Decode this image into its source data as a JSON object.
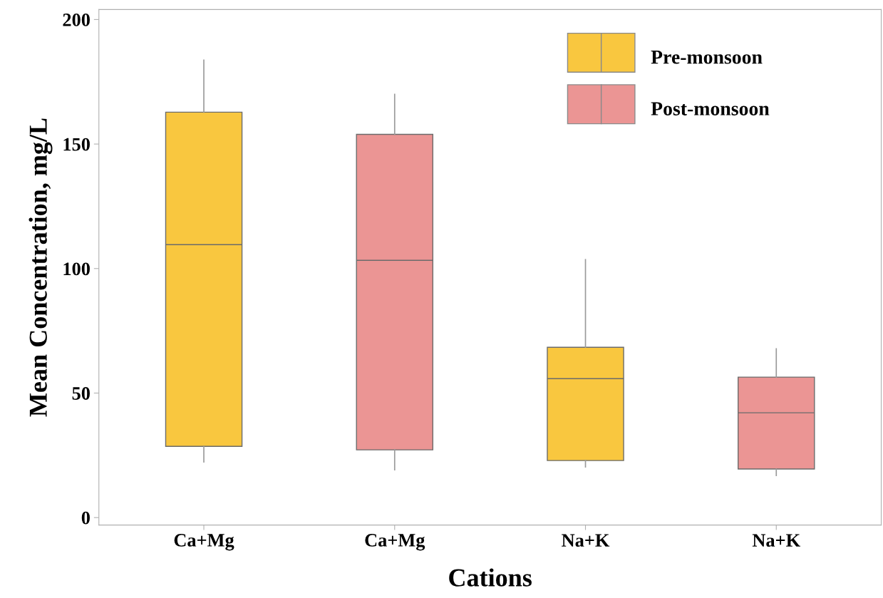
{
  "chart_data": {
    "type": "box",
    "xlabel": "Cations",
    "ylabel": "Mean Concentration, mg/L",
    "categories": [
      "Ca+Mg",
      "Ca+Mg",
      "Na+K",
      "Na+K"
    ],
    "series": [
      {
        "name": "Pre-monsoon",
        "color": "#f9c73f",
        "boxes": [
          {
            "low": 22.3,
            "q1": 28.6,
            "median": 109.6,
            "q3": 162.8,
            "high": 183.7
          },
          null,
          {
            "low": 20.3,
            "q1": 22.9,
            "median": 55.8,
            "q3": 68.4,
            "high": 103.6
          },
          null
        ]
      },
      {
        "name": "Post-monsoon",
        "color": "#eb9594",
        "boxes": [
          null,
          {
            "low": 19.2,
            "q1": 27.2,
            "median": 103.3,
            "q3": 153.9,
            "high": 170
          },
          null,
          {
            "low": 16.9,
            "q1": 19.5,
            "median": 42.1,
            "q3": 56.4,
            "high": 67.8
          }
        ]
      }
    ],
    "ylim": [
      -3,
      204
    ],
    "yticks": [
      0,
      50,
      100,
      150,
      200
    ],
    "grid": false,
    "legend": "top right"
  }
}
